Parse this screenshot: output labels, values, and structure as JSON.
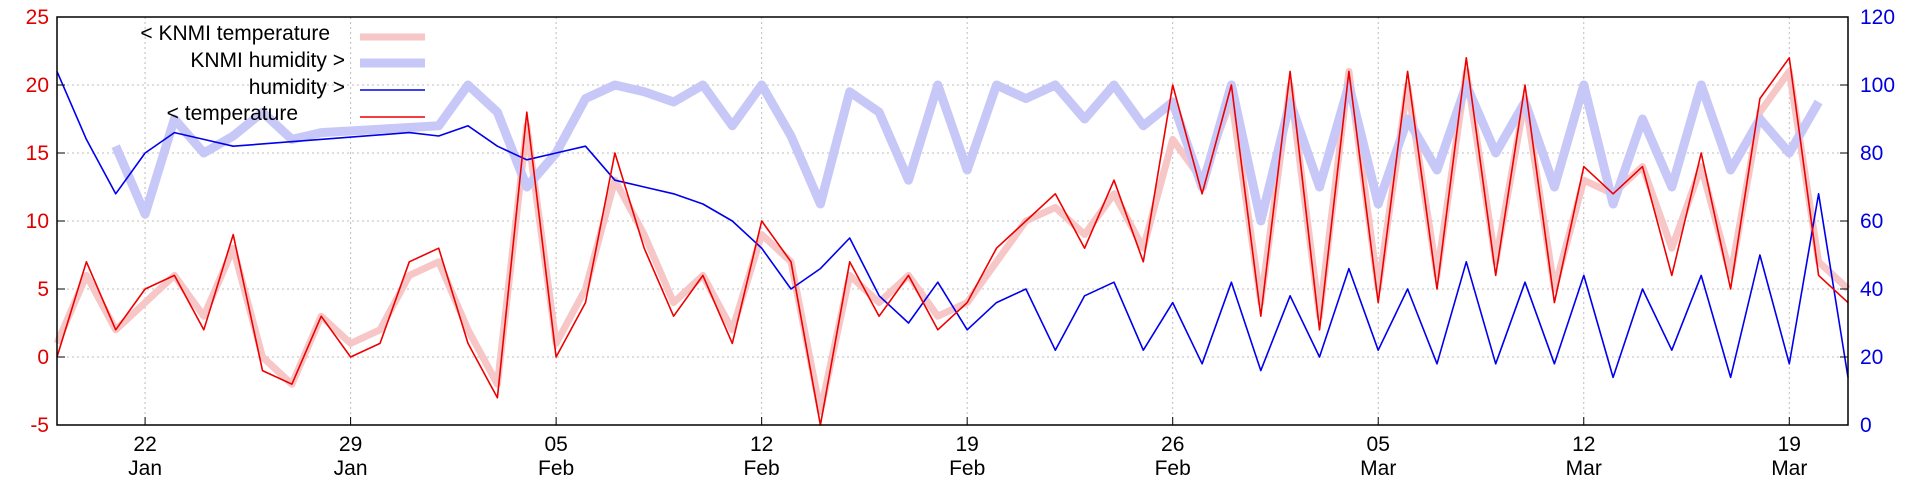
{
  "chart_data": {
    "type": "line",
    "title": "",
    "xlabel": "",
    "ylabel_left": "",
    "ylabel_right": "",
    "grid": true,
    "legend_position": "top-left",
    "x_range": [
      "2018-01-19",
      "2018-03-21"
    ],
    "y_left_range": [
      -5,
      25
    ],
    "y_right_range": [
      0,
      120
    ],
    "y_left_ticks": [
      -5,
      0,
      5,
      10,
      15,
      20,
      25
    ],
    "y_right_ticks": [
      0,
      20,
      40,
      60,
      80,
      100,
      120
    ],
    "x_ticks": [
      {
        "date": "2018-01-22",
        "day": "22",
        "month": "Jan"
      },
      {
        "date": "2018-01-29",
        "day": "29",
        "month": "Jan"
      },
      {
        "date": "2018-02-05",
        "day": "05",
        "month": "Feb"
      },
      {
        "date": "2018-02-12",
        "day": "12",
        "month": "Feb"
      },
      {
        "date": "2018-02-19",
        "day": "19",
        "month": "Feb"
      },
      {
        "date": "2018-02-26",
        "day": "26",
        "month": "Feb"
      },
      {
        "date": "2018-03-05",
        "day": "05",
        "month": "Mar"
      },
      {
        "date": "2018-03-12",
        "day": "12",
        "month": "Mar"
      },
      {
        "date": "2018-03-19",
        "day": "19",
        "month": "Mar"
      }
    ],
    "series": [
      {
        "name": "< KNMI temperature",
        "axis": "left",
        "color": "#f7c6c6",
        "x": [
          "2018-01-19",
          "2018-01-20",
          "2018-01-21",
          "2018-01-22",
          "2018-01-23",
          "2018-01-24",
          "2018-01-25",
          "2018-01-26",
          "2018-01-27",
          "2018-01-28",
          "2018-01-29",
          "2018-01-30",
          "2018-01-31",
          "2018-02-01",
          "2018-02-02",
          "2018-02-03",
          "2018-02-04",
          "2018-02-05",
          "2018-02-06",
          "2018-02-07",
          "2018-02-08",
          "2018-02-09",
          "2018-02-10",
          "2018-02-11",
          "2018-02-12",
          "2018-02-13",
          "2018-02-14",
          "2018-02-15",
          "2018-02-16",
          "2018-02-17",
          "2018-02-18",
          "2018-02-19",
          "2018-02-20",
          "2018-02-21",
          "2018-02-22",
          "2018-02-23",
          "2018-02-24",
          "2018-02-25",
          "2018-02-26",
          "2018-02-27",
          "2018-02-28",
          "2018-03-01",
          "2018-03-02",
          "2018-03-03",
          "2018-03-04",
          "2018-03-05",
          "2018-03-06",
          "2018-03-07",
          "2018-03-08",
          "2018-03-09",
          "2018-03-10",
          "2018-03-11",
          "2018-03-12",
          "2018-03-13",
          "2018-03-14",
          "2018-03-15",
          "2018-03-16",
          "2018-03-17",
          "2018-03-18",
          "2018-03-19",
          "2018-03-20",
          "2018-03-21"
        ],
        "y": [
          1,
          6,
          2,
          4,
          6,
          3,
          8,
          0,
          -2,
          3,
          1,
          2,
          6,
          7,
          2,
          -2,
          17,
          1,
          5,
          13,
          9,
          4,
          6,
          2,
          9,
          7,
          -4,
          6,
          4,
          6,
          3,
          4,
          7,
          10,
          11,
          9,
          12,
          8,
          16,
          13,
          19,
          4,
          20,
          3,
          21,
          5,
          20,
          6,
          21,
          7,
          19,
          5,
          13,
          12,
          14,
          8,
          14,
          6,
          18,
          21,
          7,
          5
        ]
      },
      {
        "name": "KNMI humidity >",
        "axis": "right",
        "color": "#c8c8f8",
        "x": [
          "2018-01-21",
          "2018-01-22",
          "2018-01-23",
          "2018-01-24",
          "2018-01-25",
          "2018-01-26",
          "2018-01-27",
          "2018-01-28",
          "2018-02-01",
          "2018-02-02",
          "2018-02-03",
          "2018-02-04",
          "2018-02-05",
          "2018-02-06",
          "2018-02-07",
          "2018-02-08",
          "2018-02-09",
          "2018-02-10",
          "2018-02-11",
          "2018-02-12",
          "2018-02-13",
          "2018-02-14",
          "2018-02-15",
          "2018-02-16",
          "2018-02-17",
          "2018-02-18",
          "2018-02-19",
          "2018-02-20",
          "2018-02-21",
          "2018-02-22",
          "2018-02-23",
          "2018-02-24",
          "2018-02-25",
          "2018-02-26",
          "2018-02-27",
          "2018-02-28",
          "2018-03-01",
          "2018-03-02",
          "2018-03-03",
          "2018-03-04",
          "2018-03-05",
          "2018-03-06",
          "2018-03-07",
          "2018-03-08",
          "2018-03-09",
          "2018-03-10",
          "2018-03-11",
          "2018-03-12",
          "2018-03-13",
          "2018-03-14",
          "2018-03-15",
          "2018-03-16",
          "2018-03-17",
          "2018-03-18",
          "2018-03-19",
          "2018-03-20"
        ],
        "y": [
          82,
          62,
          90,
          80,
          85,
          92,
          84,
          86,
          88,
          100,
          92,
          70,
          80,
          96,
          100,
          98,
          95,
          100,
          88,
          100,
          85,
          65,
          98,
          92,
          72,
          100,
          75,
          100,
          96,
          100,
          90,
          100,
          88,
          95,
          70,
          100,
          60,
          95,
          70,
          100,
          65,
          90,
          75,
          100,
          80,
          95,
          70,
          100,
          65,
          90,
          70,
          100,
          75,
          90,
          80,
          95
        ]
      },
      {
        "name": "humidity >",
        "axis": "right",
        "color": "#0000ee",
        "x": [
          "2018-01-19",
          "2018-01-20",
          "2018-01-21",
          "2018-01-22",
          "2018-01-23",
          "2018-01-24",
          "2018-01-25",
          "2018-01-31",
          "2018-02-01",
          "2018-02-02",
          "2018-02-03",
          "2018-02-04",
          "2018-02-05",
          "2018-02-06",
          "2018-02-07",
          "2018-02-08",
          "2018-02-09",
          "2018-02-10",
          "2018-02-11",
          "2018-02-12",
          "2018-02-13",
          "2018-02-14",
          "2018-02-15",
          "2018-02-16",
          "2018-02-17",
          "2018-02-18",
          "2018-02-19",
          "2018-02-20",
          "2018-02-21",
          "2018-02-22",
          "2018-02-23",
          "2018-02-24",
          "2018-02-25",
          "2018-02-26",
          "2018-02-27",
          "2018-02-28",
          "2018-03-01",
          "2018-03-02",
          "2018-03-03",
          "2018-03-04",
          "2018-03-05",
          "2018-03-06",
          "2018-03-07",
          "2018-03-08",
          "2018-03-09",
          "2018-03-10",
          "2018-03-11",
          "2018-03-12",
          "2018-03-13",
          "2018-03-14",
          "2018-03-15",
          "2018-03-16",
          "2018-03-17",
          "2018-03-18",
          "2018-03-19",
          "2018-03-20",
          "2018-03-21"
        ],
        "y": [
          104,
          84,
          68,
          80,
          86,
          84,
          82,
          86,
          85,
          88,
          82,
          78,
          80,
          82,
          72,
          70,
          68,
          65,
          60,
          52,
          40,
          46,
          55,
          38,
          30,
          42,
          28,
          36,
          40,
          22,
          38,
          42,
          22,
          36,
          18,
          42,
          16,
          38,
          20,
          46,
          22,
          40,
          18,
          48,
          18,
          42,
          18,
          44,
          14,
          40,
          22,
          44,
          14,
          50,
          18,
          68,
          14
        ]
      },
      {
        "name": "< temperature",
        "axis": "left",
        "color": "#ee0000",
        "x": [
          "2018-01-19",
          "2018-01-20",
          "2018-01-21",
          "2018-01-22",
          "2018-01-23",
          "2018-01-24",
          "2018-01-25",
          "2018-01-26",
          "2018-01-27",
          "2018-01-28",
          "2018-01-29",
          "2018-01-30",
          "2018-01-31",
          "2018-02-01",
          "2018-02-02",
          "2018-02-03",
          "2018-02-04",
          "2018-02-05",
          "2018-02-06",
          "2018-02-07",
          "2018-02-08",
          "2018-02-09",
          "2018-02-10",
          "2018-02-11",
          "2018-02-12",
          "2018-02-13",
          "2018-02-14",
          "2018-02-15",
          "2018-02-16",
          "2018-02-17",
          "2018-02-18",
          "2018-02-19",
          "2018-02-20",
          "2018-02-21",
          "2018-02-22",
          "2018-02-23",
          "2018-02-24",
          "2018-02-25",
          "2018-02-26",
          "2018-02-27",
          "2018-02-28",
          "2018-03-01",
          "2018-03-02",
          "2018-03-03",
          "2018-03-04",
          "2018-03-05",
          "2018-03-06",
          "2018-03-07",
          "2018-03-08",
          "2018-03-09",
          "2018-03-10",
          "2018-03-11",
          "2018-03-12",
          "2018-03-13",
          "2018-03-14",
          "2018-03-15",
          "2018-03-16",
          "2018-03-17",
          "2018-03-18",
          "2018-03-19",
          "2018-03-20",
          "2018-03-21"
        ],
        "y": [
          0,
          7,
          2,
          5,
          6,
          2,
          9,
          -1,
          -2,
          3,
          0,
          1,
          7,
          8,
          1,
          -3,
          18,
          0,
          4,
          15,
          8,
          3,
          6,
          1,
          10,
          7,
          -5,
          7,
          3,
          6,
          2,
          4,
          8,
          10,
          12,
          8,
          13,
          7,
          20,
          12,
          20,
          3,
          21,
          2,
          21,
          4,
          21,
          5,
          22,
          6,
          20,
          4,
          14,
          12,
          14,
          6,
          15,
          5,
          19,
          22,
          6,
          4
        ]
      }
    ]
  }
}
